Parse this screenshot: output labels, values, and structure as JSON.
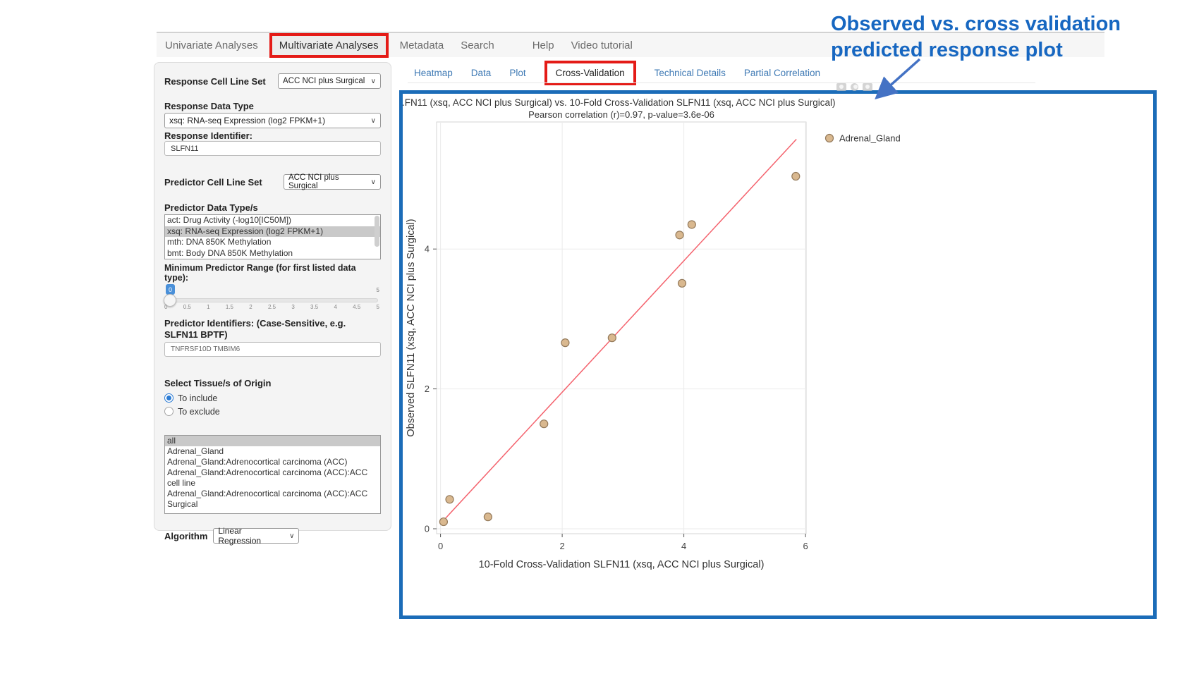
{
  "nav": {
    "items": [
      {
        "label": "Univariate Analyses"
      },
      {
        "label": "Multivariate Analyses",
        "highlighted": true
      },
      {
        "label": "Metadata"
      },
      {
        "label": "Search"
      },
      {
        "label": "Help"
      },
      {
        "label": "Video tutorial"
      }
    ]
  },
  "annotation": {
    "line1": "Observed vs. cross validation",
    "line2": "predicted response plot",
    "color": "#1767C1",
    "arrow_color": "#4472C4"
  },
  "tabs": [
    {
      "label": "Heatmap"
    },
    {
      "label": "Data"
    },
    {
      "label": "Plot"
    },
    {
      "label": "Cross-Validation",
      "active": true,
      "highlighted": true
    },
    {
      "label": "Technical Details"
    },
    {
      "label": "Partial Correlation"
    }
  ],
  "sidebar": {
    "response_cell_line_set": {
      "label": "Response Cell Line Set",
      "value": "ACC NCI plus Surgical"
    },
    "response_data_type": {
      "label": "Response Data Type",
      "value": "xsq: RNA-seq Expression (log2 FPKM+1)"
    },
    "response_identifier": {
      "label": "Response Identifier:",
      "value": "SLFN11"
    },
    "predictor_cell_line_set": {
      "label": "Predictor Cell Line Set",
      "value": "ACC NCI plus Surgical"
    },
    "predictor_data_types": {
      "label": "Predictor Data Type/s",
      "options": [
        {
          "label": "act: Drug Activity (-log10[IC50M])"
        },
        {
          "label": "xsq: RNA-seq Expression (log2 FPKM+1)",
          "selected": true
        },
        {
          "label": "mth: DNA 850K Methylation"
        },
        {
          "label": "bmt: Body DNA 850K Methylation"
        }
      ]
    },
    "min_predictor_range": {
      "label": "Minimum Predictor Range (for first listed data type):",
      "value": "0",
      "max_label": "5",
      "ticks": [
        "0",
        "0.5",
        "1",
        "1.5",
        "2",
        "2.5",
        "3",
        "3.5",
        "4",
        "4.5",
        "5"
      ]
    },
    "predictor_identifiers": {
      "label": "Predictor Identifiers: (Case-Sensitive, e.g. SLFN11 BPTF)",
      "value": "TNFRSF10D TMBIM6"
    },
    "tissue_origin": {
      "label": "Select Tissue/s of Origin",
      "options": [
        {
          "label": "To include",
          "selected": true
        },
        {
          "label": "To exclude"
        }
      ]
    },
    "tissue_list": {
      "options": [
        {
          "label": "all",
          "selected": true
        },
        {
          "label": "Adrenal_Gland"
        },
        {
          "label": "Adrenal_Gland:Adrenocortical carcinoma (ACC)"
        },
        {
          "label": "Adrenal_Gland:Adrenocortical carcinoma (ACC):ACC cell line"
        },
        {
          "label": "Adrenal_Gland:Adrenocortical carcinoma (ACC):ACC Surgical"
        }
      ]
    },
    "algorithm": {
      "label": "Algorithm",
      "value": "Linear Regression"
    }
  },
  "modebar_icons": [
    "camera-icon",
    "zoom-icon",
    "pan-icon"
  ],
  "panel": {
    "border_color": "#1B6CB8",
    "highlight_color": "#E41B17"
  },
  "chart_data": {
    "type": "scatter",
    "title": ".FN11 (xsq, ACC NCI plus Surgical) vs. 10-Fold Cross-Validation SLFN11 (xsq, ACC NCI plus Surgical)",
    "subtitle": "Pearson correlation (r)=0.97, p-value=3.6e-06",
    "xlabel": "10-Fold Cross-Validation SLFN11 (xsq, ACC NCI plus Surgical)",
    "ylabel": "Observed SLFN11 (xsq, ACC NCI plus Surgical)",
    "xlim": [
      -0.07,
      6.01
    ],
    "ylim": [
      -0.07,
      5.82
    ],
    "xticks": [
      0,
      2,
      4,
      6
    ],
    "yticks": [
      0,
      2,
      4
    ],
    "grid": true,
    "legend": {
      "position": "right",
      "entries": [
        {
          "label": "Adrenal_Gland",
          "color": "#d9b88f"
        }
      ]
    },
    "points": [
      [
        0.05,
        0.1
      ],
      [
        0.15,
        0.42
      ],
      [
        0.78,
        0.17
      ],
      [
        1.7,
        1.5
      ],
      [
        2.05,
        2.66
      ],
      [
        2.82,
        2.73
      ],
      [
        3.93,
        4.2
      ],
      [
        3.97,
        3.51
      ],
      [
        4.13,
        4.35
      ],
      [
        5.84,
        5.04
      ]
    ],
    "fit_line": {
      "x1": 0.05,
      "y1": 0.12,
      "x2": 5.85,
      "y2": 5.57,
      "color": "#F4626D"
    },
    "point_fill": "#d9b88f",
    "point_stroke": "#93795a",
    "grid_color": "#ebebeb",
    "panel_border_color": "#d6d6d6"
  }
}
